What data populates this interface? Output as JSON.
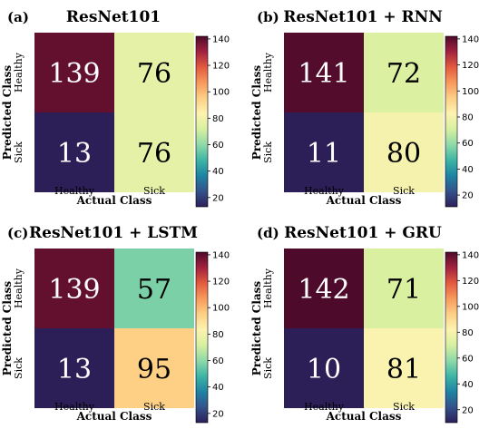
{
  "colormap": {
    "name": "Spectral_r",
    "stops": [
      "#2c1f58",
      "#33528b",
      "#1f83a3",
      "#3db5a5",
      "#8fd9a8",
      "#d7f0a0",
      "#fdf3b0",
      "#fdd086",
      "#f79a5c",
      "#e45a3f",
      "#a3223f",
      "#4d0a2a"
    ]
  },
  "chart_data": [
    {
      "type": "heatmap",
      "panel": "(a)",
      "title": "ResNet101",
      "xlabel": "Actual Class",
      "ylabel": "Predicted Class",
      "x_categories": [
        "Healthy",
        "Sick"
      ],
      "y_categories": [
        "Healthy",
        "Sick"
      ],
      "values": [
        [
          139,
          76
        ],
        [
          13,
          76
        ]
      ],
      "colorbar": {
        "min": 13,
        "max": 142,
        "ticks": [
          20,
          40,
          60,
          80,
          100,
          120,
          140
        ]
      }
    },
    {
      "type": "heatmap",
      "panel": "(b)",
      "title": "ResNet101 + RNN",
      "xlabel": "Actual Class",
      "ylabel": "Predicted Class",
      "x_categories": [
        "Healthy",
        "Sick"
      ],
      "y_categories": [
        "Healthy",
        "Sick"
      ],
      "values": [
        [
          141,
          72
        ],
        [
          11,
          80
        ]
      ],
      "colorbar": {
        "min": 11,
        "max": 142,
        "ticks": [
          20,
          40,
          60,
          80,
          100,
          120,
          140
        ]
      }
    },
    {
      "type": "heatmap",
      "panel": "(c)",
      "title": "ResNet101 + LSTM",
      "xlabel": "Actual Class",
      "ylabel": "Predicted Class",
      "x_categories": [
        "Healthy",
        "Sick"
      ],
      "y_categories": [
        "Healthy",
        "Sick"
      ],
      "values": [
        [
          139,
          57
        ],
        [
          13,
          95
        ]
      ],
      "colorbar": {
        "min": 13,
        "max": 142,
        "ticks": [
          20,
          40,
          60,
          80,
          100,
          120,
          140
        ]
      }
    },
    {
      "type": "heatmap",
      "panel": "(d)",
      "title": "ResNet101 + GRU",
      "xlabel": "Actual Class",
      "ylabel": "Predicted Class",
      "x_categories": [
        "Healthy",
        "Sick"
      ],
      "y_categories": [
        "Healthy",
        "Sick"
      ],
      "values": [
        [
          142,
          71
        ],
        [
          10,
          81
        ]
      ],
      "colorbar": {
        "min": 10,
        "max": 142,
        "ticks": [
          20,
          40,
          60,
          80,
          100,
          120,
          140
        ]
      }
    }
  ]
}
